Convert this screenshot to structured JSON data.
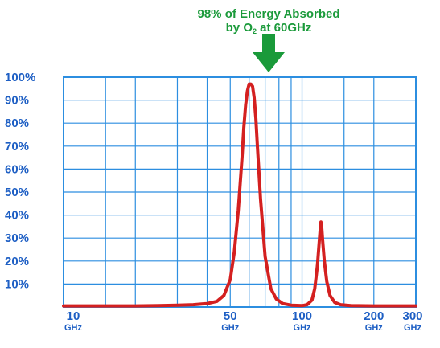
{
  "chart_data": {
    "type": "line",
    "annotation": {
      "line1": "98% of Energy Absorbed",
      "line2_prefix": "by O",
      "line2_subscript": "2",
      "line2_suffix": " at 60GHz"
    },
    "x_scale": "log",
    "xlim": [
      10,
      300
    ],
    "ylim": [
      0,
      100
    ],
    "x_ticks": [
      {
        "value": 10,
        "number": "10",
        "unit": "GHz"
      },
      {
        "value": 50,
        "number": "50",
        "unit": "GHz"
      },
      {
        "value": 100,
        "number": "100",
        "unit": "GHz"
      },
      {
        "value": 200,
        "number": "200",
        "unit": "GHz"
      },
      {
        "value": 300,
        "number": "300",
        "unit": "GHz"
      }
    ],
    "y_ticks": [
      {
        "value": 10,
        "label": "10%"
      },
      {
        "value": 20,
        "label": "20%"
      },
      {
        "value": 30,
        "label": "30%"
      },
      {
        "value": 40,
        "label": "40%"
      },
      {
        "value": 50,
        "label": "50%"
      },
      {
        "value": 60,
        "label": "60%"
      },
      {
        "value": 70,
        "label": "70%"
      },
      {
        "value": 80,
        "label": "80%"
      },
      {
        "value": 90,
        "label": "90%"
      },
      {
        "value": 100,
        "label": "100%"
      }
    ],
    "x_gridlines": [
      10,
      15,
      20,
      30,
      40,
      50,
      60,
      70,
      80,
      90,
      100,
      150,
      200,
      300
    ],
    "y_gridlines": [
      10,
      20,
      30,
      40,
      50,
      60,
      70,
      80,
      90,
      100
    ],
    "grid": true,
    "series": [
      {
        "color": "#d42020",
        "x": [
          10,
          15,
          20,
          25,
          30,
          35,
          40,
          44,
          47,
          50,
          52,
          54,
          56,
          57,
          58,
          59,
          60,
          61,
          62,
          63,
          64,
          65,
          67,
          70,
          74,
          78,
          83,
          90,
          100,
          105,
          110,
          113,
          116,
          118,
          119,
          120,
          121,
          122,
          124,
          127,
          131,
          137,
          145,
          160,
          200,
          300
        ],
        "y": [
          0.5,
          0.5,
          0.5,
          0.6,
          0.8,
          1,
          1.5,
          2.5,
          5,
          12,
          24,
          42,
          65,
          78,
          88,
          94,
          97,
          97,
          96,
          91,
          82,
          70,
          47,
          22,
          8,
          3.5,
          1.5,
          0.8,
          0.6,
          1,
          3,
          8,
          18,
          28,
          33,
          37,
          34,
          29,
          20,
          11,
          5,
          2,
          1,
          0.6,
          0.5,
          0.5
        ]
      }
    ],
    "colors": {
      "grid": "#2c8ee0",
      "labels": "#1e5fc4",
      "curve": "#d42020",
      "annotation": "#1a9a3a"
    }
  }
}
